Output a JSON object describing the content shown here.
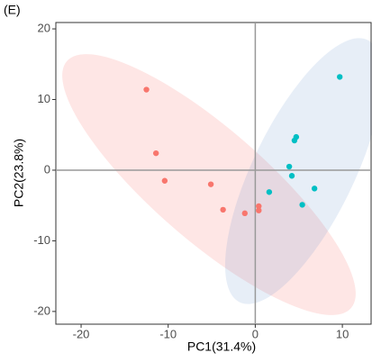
{
  "chart_data": {
    "type": "scatter",
    "panel_label": "(E)",
    "x_label": "PC1(31.4%)",
    "y_label": "PC2(23.8%)",
    "xlim": [
      -22.9,
      13.3
    ],
    "ylim": [
      -21.8,
      20.9
    ],
    "xticks": [
      -20,
      -10,
      0,
      10
    ],
    "yticks": [
      -20,
      -10,
      0,
      10,
      20
    ],
    "series": [
      {
        "color": "#f8766d",
        "x": [
          -12.5,
          -11.4,
          -10.4,
          -5.1,
          -3.7,
          -1.2,
          0.4,
          0.4
        ],
        "values": [
          11.4,
          2.4,
          -1.5,
          -2.0,
          -5.6,
          -6.1,
          -5.1,
          -5.7
        ]
      },
      {
        "color": "#00bfc4",
        "x": [
          9.7,
          4.7,
          4.5,
          3.9,
          4.2,
          1.6,
          6.8,
          5.4
        ],
        "values": [
          13.2,
          4.7,
          4.2,
          0.5,
          -0.8,
          -3.1,
          -2.6,
          -4.9
        ]
      }
    ]
  }
}
